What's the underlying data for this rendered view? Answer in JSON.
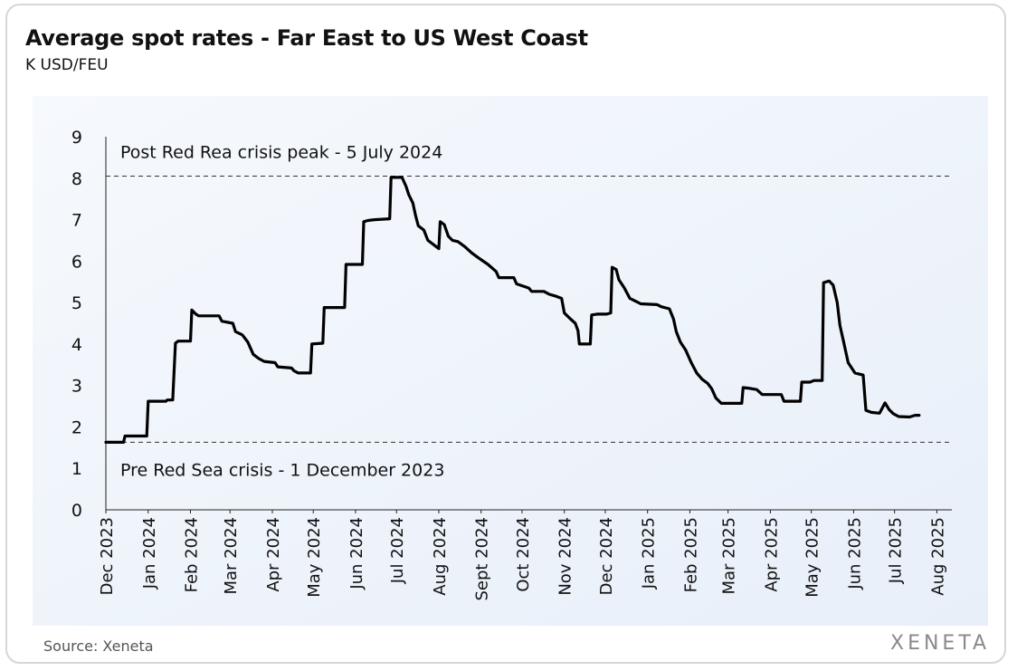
{
  "header": {
    "title": "Average spot rates - Far East to US West Coast",
    "subtitle": "K USD/FEU"
  },
  "footer": {
    "source": "Source: Xeneta",
    "logo_text": "XENETA"
  },
  "colors": {
    "line": "#000000",
    "plot_bg_start": "#f6f9fd",
    "plot_bg_end": "#e8eff9",
    "reference_line": "#333333"
  },
  "chart_data": {
    "type": "line",
    "title": "Average spot rates - Far East to US West Coast",
    "ylabel": "K USD/FEU",
    "xlabel": "",
    "ylim": [
      0,
      9
    ],
    "yticks": [
      0,
      1,
      2,
      3,
      4,
      5,
      6,
      7,
      8,
      9
    ],
    "xlim": [
      "2023-12-01",
      "2025-08-12"
    ],
    "xticks": [
      {
        "date": "2023-12-01",
        "label": "Dec 2023"
      },
      {
        "date": "2024-01-01",
        "label": "Jan 2024"
      },
      {
        "date": "2024-02-01",
        "label": "Feb 2024"
      },
      {
        "date": "2024-03-01",
        "label": "Mar 2024"
      },
      {
        "date": "2024-04-01",
        "label": "Apr 2024"
      },
      {
        "date": "2024-05-01",
        "label": "May 2024"
      },
      {
        "date": "2024-06-01",
        "label": "Jun 2024"
      },
      {
        "date": "2024-07-01",
        "label": "Jul 2024"
      },
      {
        "date": "2024-08-01",
        "label": "Aug 2024"
      },
      {
        "date": "2024-09-01",
        "label": "Sept 2024"
      },
      {
        "date": "2024-10-01",
        "label": "Oct 2024"
      },
      {
        "date": "2024-11-01",
        "label": "Nov 2024"
      },
      {
        "date": "2024-12-01",
        "label": "Dec 2024"
      },
      {
        "date": "2025-01-01",
        "label": "Jan 2025"
      },
      {
        "date": "2025-02-01",
        "label": "Feb 2025"
      },
      {
        "date": "2025-03-01",
        "label": "Mar 2025"
      },
      {
        "date": "2025-04-01",
        "label": "Apr 2025"
      },
      {
        "date": "2025-05-01",
        "label": "May 2025"
      },
      {
        "date": "2025-06-01",
        "label": "Jun 2025"
      },
      {
        "date": "2025-07-01",
        "label": "Jul 2025"
      },
      {
        "date": "2025-08-01",
        "label": "Aug 2025"
      }
    ],
    "grid": false,
    "reference_lines": [
      {
        "y": 8.05,
        "label": "Post Red Rea crisis peak - 5 July 2024"
      },
      {
        "y": 1.63,
        "label": "Pre Red Sea crisis - 1 December 2023"
      }
    ],
    "series": [
      {
        "points": [
          [
            "2023-12-01",
            1.63
          ],
          [
            "2023-12-14",
            1.63
          ],
          [
            "2023-12-15",
            1.78
          ],
          [
            "2023-12-31",
            1.78
          ],
          [
            "2024-01-01",
            2.62
          ],
          [
            "2024-01-14",
            2.62
          ],
          [
            "2024-01-15",
            2.65
          ],
          [
            "2024-01-19",
            2.65
          ],
          [
            "2024-01-21",
            4.02
          ],
          [
            "2024-01-23",
            4.07
          ],
          [
            "2024-02-01",
            4.07
          ],
          [
            "2024-02-02",
            4.82
          ],
          [
            "2024-02-05",
            4.72
          ],
          [
            "2024-02-07",
            4.68
          ],
          [
            "2024-02-22",
            4.68
          ],
          [
            "2024-02-24",
            4.55
          ],
          [
            "2024-03-03",
            4.5
          ],
          [
            "2024-03-05",
            4.3
          ],
          [
            "2024-03-10",
            4.22
          ],
          [
            "2024-03-14",
            4.05
          ],
          [
            "2024-03-18",
            3.75
          ],
          [
            "2024-03-22",
            3.65
          ],
          [
            "2024-03-26",
            3.58
          ],
          [
            "2024-04-03",
            3.55
          ],
          [
            "2024-04-05",
            3.45
          ],
          [
            "2024-04-15",
            3.42
          ],
          [
            "2024-04-17",
            3.35
          ],
          [
            "2024-04-20",
            3.3
          ],
          [
            "2024-04-29",
            3.3
          ],
          [
            "2024-04-30",
            4.0
          ],
          [
            "2024-05-08",
            4.02
          ],
          [
            "2024-05-09",
            4.88
          ],
          [
            "2024-05-24",
            4.88
          ],
          [
            "2024-05-25",
            5.92
          ],
          [
            "2024-06-06",
            5.92
          ],
          [
            "2024-06-07",
            6.95
          ],
          [
            "2024-06-10",
            6.98
          ],
          [
            "2024-06-15",
            7.0
          ],
          [
            "2024-06-26",
            7.02
          ],
          [
            "2024-06-27",
            8.02
          ],
          [
            "2024-07-05",
            8.02
          ],
          [
            "2024-07-08",
            7.8
          ],
          [
            "2024-07-10",
            7.6
          ],
          [
            "2024-07-13",
            7.4
          ],
          [
            "2024-07-15",
            7.1
          ],
          [
            "2024-07-17",
            6.85
          ],
          [
            "2024-07-21",
            6.75
          ],
          [
            "2024-07-24",
            6.5
          ],
          [
            "2024-07-30",
            6.35
          ],
          [
            "2024-08-01",
            6.3
          ],
          [
            "2024-08-02",
            6.95
          ],
          [
            "2024-08-05",
            6.88
          ],
          [
            "2024-08-08",
            6.6
          ],
          [
            "2024-08-11",
            6.5
          ],
          [
            "2024-08-15",
            6.47
          ],
          [
            "2024-08-20",
            6.35
          ],
          [
            "2024-08-25",
            6.2
          ],
          [
            "2024-08-30",
            6.08
          ],
          [
            "2024-09-06",
            5.92
          ],
          [
            "2024-09-12",
            5.75
          ],
          [
            "2024-09-14",
            5.6
          ],
          [
            "2024-09-25",
            5.6
          ],
          [
            "2024-09-27",
            5.45
          ],
          [
            "2024-10-06",
            5.35
          ],
          [
            "2024-10-08",
            5.27
          ],
          [
            "2024-10-17",
            5.27
          ],
          [
            "2024-10-21",
            5.2
          ],
          [
            "2024-10-26",
            5.15
          ],
          [
            "2024-10-30",
            5.1
          ],
          [
            "2024-11-01",
            4.75
          ],
          [
            "2024-11-05",
            4.62
          ],
          [
            "2024-11-09",
            4.5
          ],
          [
            "2024-11-11",
            4.32
          ],
          [
            "2024-11-12",
            4.0
          ],
          [
            "2024-11-20",
            4.0
          ],
          [
            "2024-11-21",
            4.7
          ],
          [
            "2024-11-25",
            4.72
          ],
          [
            "2024-12-02",
            4.72
          ],
          [
            "2024-12-05",
            4.75
          ],
          [
            "2024-12-06",
            5.85
          ],
          [
            "2024-12-09",
            5.8
          ],
          [
            "2024-12-11",
            5.55
          ],
          [
            "2024-12-15",
            5.35
          ],
          [
            "2024-12-19",
            5.1
          ],
          [
            "2024-12-24",
            5.02
          ],
          [
            "2024-12-27",
            4.97
          ],
          [
            "2025-01-08",
            4.95
          ],
          [
            "2025-01-11",
            4.9
          ],
          [
            "2025-01-17",
            4.85
          ],
          [
            "2025-01-20",
            4.6
          ],
          [
            "2025-01-22",
            4.3
          ],
          [
            "2025-01-25",
            4.05
          ],
          [
            "2025-01-29",
            3.85
          ],
          [
            "2025-02-02",
            3.55
          ],
          [
            "2025-02-06",
            3.3
          ],
          [
            "2025-02-10",
            3.15
          ],
          [
            "2025-02-14",
            3.05
          ],
          [
            "2025-02-17",
            2.92
          ],
          [
            "2025-02-20",
            2.7
          ],
          [
            "2025-02-24",
            2.57
          ],
          [
            "2025-03-11",
            2.57
          ],
          [
            "2025-03-12",
            2.95
          ],
          [
            "2025-03-17",
            2.93
          ],
          [
            "2025-03-22",
            2.9
          ],
          [
            "2025-03-26",
            2.78
          ],
          [
            "2025-04-09",
            2.78
          ],
          [
            "2025-04-11",
            2.62
          ],
          [
            "2025-04-23",
            2.62
          ],
          [
            "2025-04-24",
            3.08
          ],
          [
            "2025-04-30",
            3.08
          ],
          [
            "2025-05-03",
            3.12
          ],
          [
            "2025-05-09",
            3.12
          ],
          [
            "2025-05-10",
            5.48
          ],
          [
            "2025-05-14",
            5.52
          ],
          [
            "2025-05-17",
            5.42
          ],
          [
            "2025-05-20",
            5.0
          ],
          [
            "2025-05-22",
            4.45
          ],
          [
            "2025-05-25",
            4.0
          ],
          [
            "2025-05-28",
            3.55
          ],
          [
            "2025-06-02",
            3.3
          ],
          [
            "2025-06-08",
            3.25
          ],
          [
            "2025-06-10",
            2.4
          ],
          [
            "2025-06-14",
            2.35
          ],
          [
            "2025-06-20",
            2.33
          ],
          [
            "2025-06-24",
            2.58
          ],
          [
            "2025-06-27",
            2.42
          ],
          [
            "2025-06-30",
            2.32
          ],
          [
            "2025-07-04",
            2.25
          ],
          [
            "2025-07-12",
            2.24
          ],
          [
            "2025-07-16",
            2.28
          ],
          [
            "2025-07-19",
            2.28
          ]
        ]
      }
    ]
  }
}
